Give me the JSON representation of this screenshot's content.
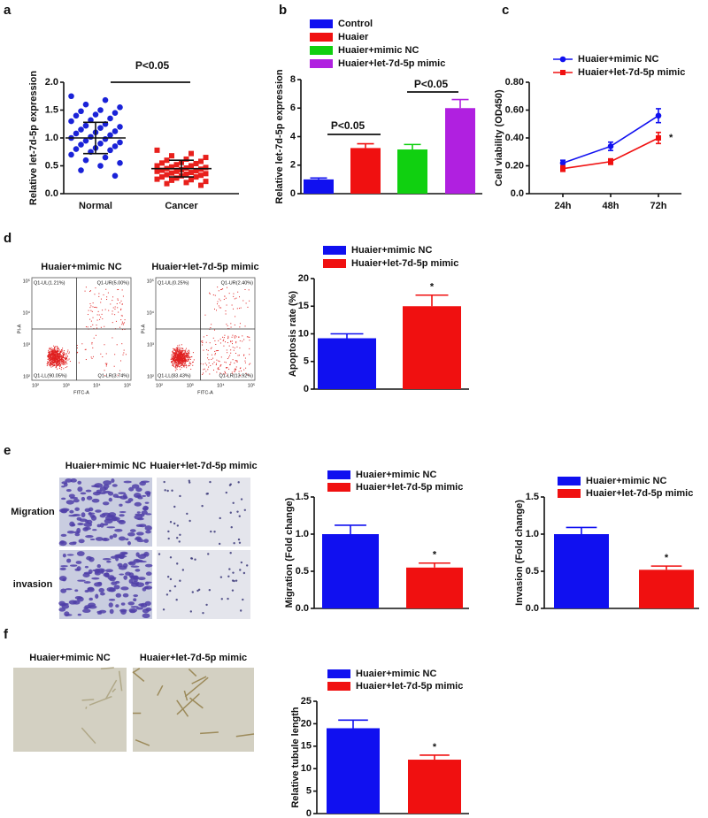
{
  "panel_labels": [
    "a",
    "b",
    "c",
    "d",
    "e",
    "f"
  ],
  "flow_cytometry": {
    "x_label": "FITC-A",
    "y_label": "PI-A",
    "x_ticks": [
      "10²",
      "10³",
      "10⁴",
      "10⁵"
    ],
    "y_ticks": [
      "10²",
      "10³",
      "10⁴",
      "10⁵"
    ],
    "plots": [
      {
        "title": "Huaier+mimic NC",
        "quadrants": [
          "Q1-UL(1.21%)",
          "Q1-UR(5.00%)",
          "Q1-LL(90.05%)",
          "Q1-LR(3.74%)"
        ]
      },
      {
        "title": "Huaier+let-7d-5p mimic",
        "quadrants": [
          "Q1-UL(0.25%)",
          "Q1-UR(2.40%)",
          "Q1-LL(83.43%)",
          "Q1-LR(13.92%)"
        ]
      }
    ]
  },
  "transwell": {
    "columns": [
      "Huaier+mimic NC",
      "Huaier+let-7d-5p mimic"
    ],
    "rows": [
      "Migration",
      "invasion"
    ]
  },
  "tube_formation": {
    "columns": [
      "Huaier+mimic NC",
      "Huaier+let-7d-5p mimic"
    ]
  },
  "chart_data": [
    {
      "type": "dotplot",
      "ylabel": "Relative let-7d-5p expression",
      "categories": [
        "Normal",
        "Cancer"
      ],
      "colors": [
        "#1a22d8",
        "#e8201c"
      ],
      "markers": [
        "circle",
        "square"
      ],
      "points": [
        [
          1.75,
          1.68,
          1.6,
          1.55,
          1.5,
          1.48,
          1.45,
          1.42,
          1.4,
          1.35,
          1.32,
          1.3,
          1.25,
          1.22,
          1.2,
          1.18,
          1.15,
          1.12,
          1.1,
          1.08,
          1.05,
          1.02,
          1.0,
          0.98,
          0.95,
          0.92,
          0.9,
          0.88,
          0.85,
          0.82,
          0.8,
          0.78,
          0.75,
          0.7,
          0.65,
          0.6,
          0.55,
          0.5,
          0.42,
          0.32
        ],
        [
          0.78,
          0.72,
          0.68,
          0.65,
          0.62,
          0.6,
          0.58,
          0.56,
          0.55,
          0.54,
          0.52,
          0.5,
          0.5,
          0.48,
          0.47,
          0.46,
          0.45,
          0.44,
          0.43,
          0.42,
          0.41,
          0.4,
          0.4,
          0.38,
          0.37,
          0.36,
          0.35,
          0.34,
          0.33,
          0.32,
          0.3,
          0.3,
          0.28,
          0.26,
          0.25,
          0.24,
          0.22,
          0.2,
          0.18,
          0.15
        ]
      ],
      "means": [
        1.0,
        0.45
      ],
      "sds": [
        0.28,
        0.15
      ],
      "ylim": [
        0,
        2.0
      ],
      "yticks": [
        {
          "value": 0,
          "label": "0.0"
        },
        {
          "value": 0.5,
          "label": "0.5"
        },
        {
          "value": 1.0,
          "label": "1.0"
        },
        {
          "value": 1.5,
          "label": "1.5"
        },
        {
          "value": 2.0,
          "label": "2.0"
        }
      ],
      "annotations": [
        "P<0.05"
      ]
    },
    {
      "type": "bar",
      "ylabel": "Relative let-7d-5p expression",
      "legend": "top-left",
      "categories": [
        "Control",
        "Huaier",
        "Huaier+mimic NC",
        "Huaier+let-7d-5p mimic"
      ],
      "colors": [
        "#1010f0",
        "#f01010",
        "#10d010",
        "#b020e0"
      ],
      "values": [
        1.0,
        3.2,
        3.1,
        6.0
      ],
      "errors": [
        0.1,
        0.3,
        0.35,
        0.6
      ],
      "ylim": [
        0,
        8
      ],
      "yticks": [
        0,
        2,
        4,
        6,
        8
      ],
      "annotations": [
        "P<0.05",
        "P<0.05"
      ]
    },
    {
      "type": "line",
      "ylabel": "Cell viability (OD450)",
      "legend": "top-left",
      "categories": [
        "24h",
        "48h",
        "72h"
      ],
      "series": [
        {
          "name": "Huaier+mimic NC",
          "color": "#1010f0",
          "values": [
            0.22,
            0.34,
            0.56
          ],
          "errors": [
            0.02,
            0.03,
            0.05
          ]
        },
        {
          "name": "Huaier+let-7d-5p mimic",
          "color": "#f01010",
          "values": [
            0.18,
            0.23,
            0.4
          ],
          "errors": [
            0.02,
            0.02,
            0.04
          ]
        }
      ],
      "ylim": [
        0,
        0.8
      ],
      "yticks": [
        {
          "value": 0,
          "label": "0.0"
        },
        {
          "value": 0.2,
          "label": "0.20"
        },
        {
          "value": 0.4,
          "label": "0.40"
        },
        {
          "value": 0.6,
          "label": "0.60"
        },
        {
          "value": 0.8,
          "label": "0.80"
        }
      ],
      "annotations": [
        "*"
      ]
    },
    {
      "type": "bar",
      "ylabel": "Apoptosis rate (%)",
      "legend": "top-left",
      "categories": [
        "Huaier+mimic NC",
        "Huaier+let-7d-5p mimic"
      ],
      "colors": [
        "#1010f0",
        "#f01010"
      ],
      "values": [
        9.2,
        15
      ],
      "errors": [
        0.8,
        2.0
      ],
      "ylim": [
        0,
        20
      ],
      "yticks": [
        0,
        5,
        10,
        15,
        20
      ],
      "annotations": [
        "*"
      ]
    },
    {
      "type": "bar",
      "ylabel": "Migration (Fold change)",
      "legend": "top-left",
      "categories": [
        "Huaier+mimic NC",
        "Huaier+let-7d-5p mimic"
      ],
      "colors": [
        "#1010f0",
        "#f01010"
      ],
      "values": [
        1.0,
        0.55
      ],
      "errors": [
        0.12,
        0.06
      ],
      "ylim": [
        0,
        1.5
      ],
      "yticks": [
        {
          "value": 0,
          "label": "0.0"
        },
        {
          "value": 0.5,
          "label": "0.5"
        },
        {
          "value": 1.0,
          "label": "1.0"
        },
        {
          "value": 1.5,
          "label": "1.5"
        }
      ],
      "annotations": [
        "*"
      ]
    },
    {
      "type": "bar",
      "ylabel": "Invasion (Fold change)",
      "legend": "top-left",
      "categories": [
        "Huaier+mimic NC",
        "Huaier+let-7d-5p mimic"
      ],
      "colors": [
        "#1010f0",
        "#f01010"
      ],
      "values": [
        1.0,
        0.52
      ],
      "errors": [
        0.09,
        0.05
      ],
      "ylim": [
        0,
        1.5
      ],
      "yticks": [
        {
          "value": 0,
          "label": "0.0"
        },
        {
          "value": 0.5,
          "label": "0.5"
        },
        {
          "value": 1.0,
          "label": "1.0"
        },
        {
          "value": 1.5,
          "label": "1.5"
        }
      ],
      "annotations": [
        "*"
      ]
    },
    {
      "type": "bar",
      "ylabel": "Relative tubule length",
      "legend": "top-left",
      "categories": [
        "Huaier+mimic NC",
        "Huaier+let-7d-5p mimic"
      ],
      "colors": [
        "#1010f0",
        "#f01010"
      ],
      "values": [
        19,
        12
      ],
      "errors": [
        1.8,
        1.0
      ],
      "ylim": [
        0,
        25
      ],
      "yticks": [
        0,
        5,
        10,
        15,
        20,
        25
      ],
      "annotations": [
        "*"
      ]
    }
  ]
}
